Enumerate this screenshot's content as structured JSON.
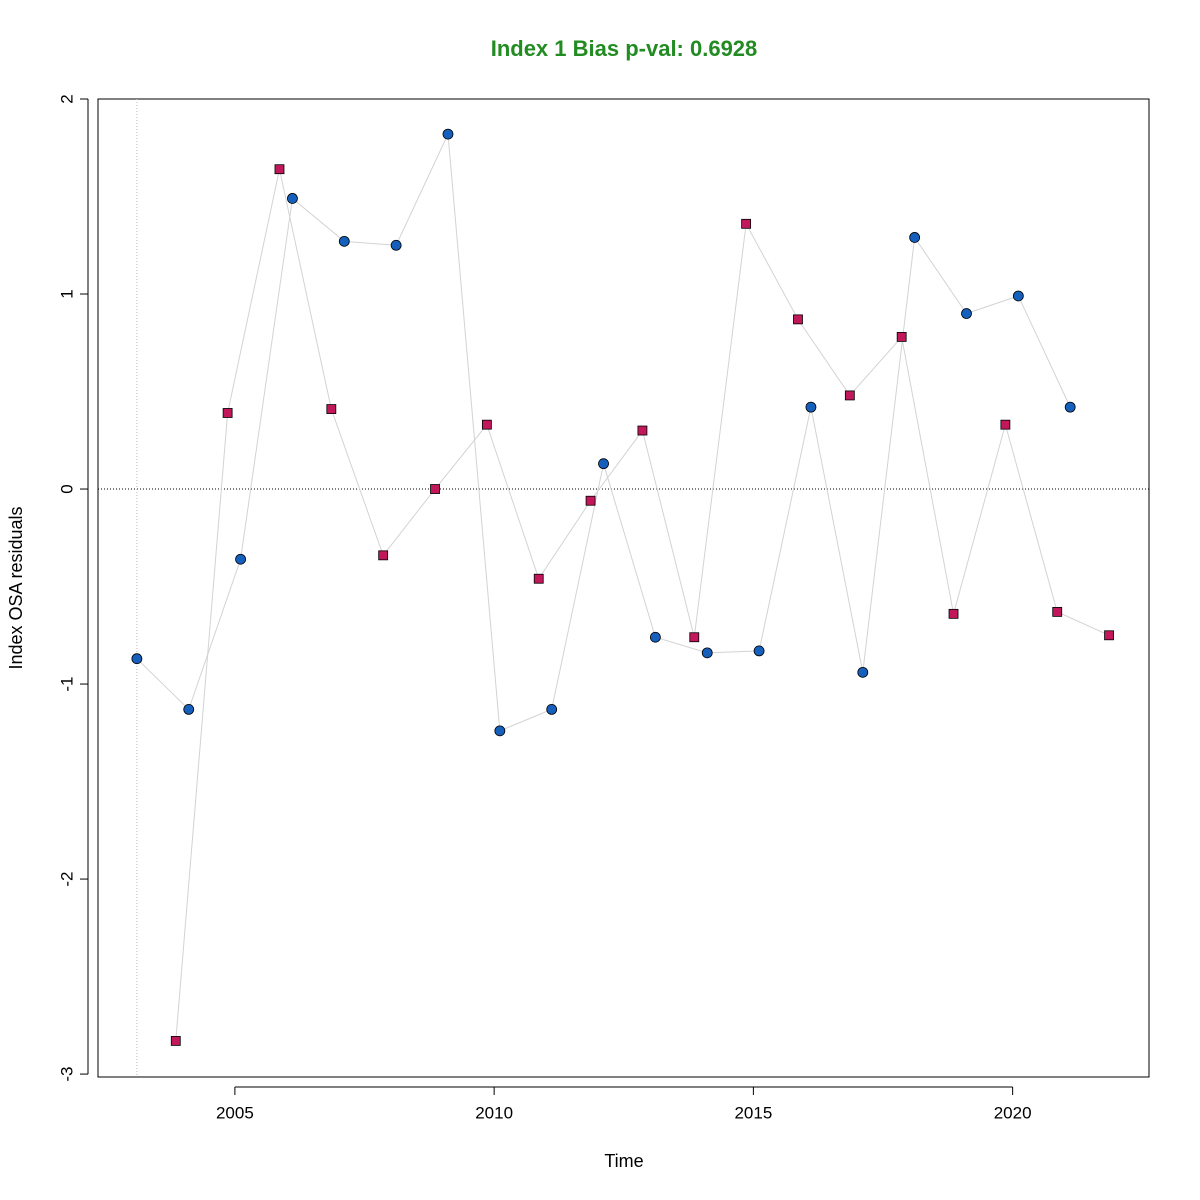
{
  "chart_data": {
    "type": "scatter",
    "title": "Index 1 Bias p-val: 0.6928",
    "title_color": "#228b22",
    "xlabel": "Time",
    "ylabel": "Index OSA residuals",
    "xlim": [
      2002.36,
      2022.63
    ],
    "ylim": [
      -3.015,
      2.0
    ],
    "xticks": [
      2005,
      2010,
      2015,
      2020
    ],
    "yticks": [
      -3,
      -2,
      -1,
      0,
      1,
      2
    ],
    "hline": 0,
    "vline": 2003.11,
    "line_color": "#d3d3d3",
    "series": [
      {
        "color": "#1560bd",
        "marker": "circle",
        "x": [
          2003.11,
          2004.11,
          2005.11,
          2006.11,
          2007.11,
          2008.11,
          2009.11,
          2010.11,
          2011.11,
          2012.11,
          2013.11,
          2014.11,
          2015.11,
          2016.11,
          2017.11,
          2018.11,
          2019.11,
          2020.11,
          2021.11
        ],
        "values": [
          -0.87,
          -1.13,
          -0.36,
          1.49,
          1.27,
          1.25,
          1.82,
          -1.24,
          -1.13,
          0.13,
          -0.76,
          -0.84,
          -0.83,
          0.42,
          -0.94,
          1.29,
          0.9,
          0.99,
          0.42
        ]
      },
      {
        "color": "#c2185b",
        "marker": "square",
        "x": [
          2003.86,
          2004.86,
          2005.86,
          2006.86,
          2007.86,
          2008.86,
          2009.86,
          2010.86,
          2011.86,
          2012.86,
          2013.86,
          2014.86,
          2015.86,
          2016.86,
          2017.86,
          2018.86,
          2019.86,
          2020.86,
          2021.86
        ],
        "values": [
          -2.83,
          0.39,
          1.64,
          0.41,
          -0.34,
          0.0,
          0.33,
          -0.46,
          -0.06,
          0.3,
          -0.76,
          1.36,
          0.87,
          0.48,
          0.78,
          -0.64,
          0.33,
          -0.63,
          -0.75
        ]
      }
    ]
  }
}
